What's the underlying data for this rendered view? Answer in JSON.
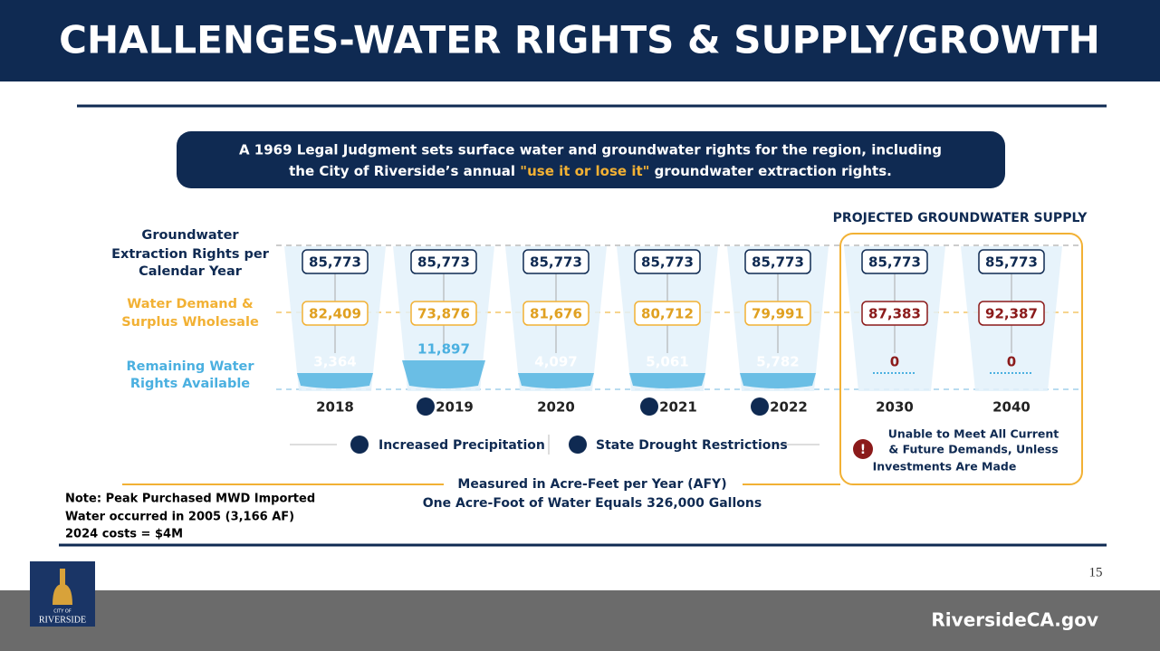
{
  "header": {
    "title": "CHALLENGES-WATER RIGHTS & SUPPLY/GROWTH"
  },
  "intro": {
    "line1": "A 1969 Legal Judgment sets surface water and groundwater rights for the region, including",
    "line2_start": "the City of Riverside’s annual ",
    "highlight": "\"use it or lose it\"",
    "line2_end": " groundwater extraction rights."
  },
  "row_labels": {
    "rights": [
      "Groundwater",
      "Extraction Rights per",
      "Calendar Year"
    ],
    "demand": [
      "Water Demand &",
      "Surplus Wholesale"
    ],
    "remaining": [
      "Remaining Water",
      "Rights Available"
    ]
  },
  "projected_label": "PROJECTED GROUNDWATER SUPPLY",
  "columns": [
    {
      "year": "2018",
      "rights": "85,773",
      "demand": "82,409",
      "remaining": "3,364"
    },
    {
      "year": "2019",
      "rights": "85,773",
      "demand": "73,876",
      "remaining": "11,897"
    },
    {
      "year": "2020",
      "rights": "85,773",
      "demand": "81,676",
      "remaining": "4,097"
    },
    {
      "year": "2021",
      "rights": "85,773",
      "demand": "80,712",
      "remaining": "5,061"
    },
    {
      "year": "2022",
      "rights": "85,773",
      "demand": "79,991",
      "remaining": "5,782"
    },
    {
      "year": "2030",
      "rights": "85,773",
      "demand": "87,383",
      "remaining": "0"
    },
    {
      "year": "2040",
      "rights": "85,773",
      "demand": "92,387",
      "remaining": "0"
    }
  ],
  "legend": {
    "precipitation": "Increased Precipitation",
    "drought": "State Drought Restrictions"
  },
  "warning": [
    "Unable to Meet All Current",
    "& Future Demands, Unless",
    "Investments Are Made"
  ],
  "units": [
    "Measured in Acre-Feet per Year (AFY)",
    "One Acre-Foot of Water Equals 326,000 Gallons"
  ],
  "note": [
    "Note: Peak Purchased MWD Imported",
    "Water occurred in 2005 (3,166 AF)",
    "2024 costs = $4M"
  ],
  "logo": {
    "small": "CITY OF",
    "name": "RIVERSIDE"
  },
  "page_number": "15",
  "website": "RiversideCA.gov"
}
